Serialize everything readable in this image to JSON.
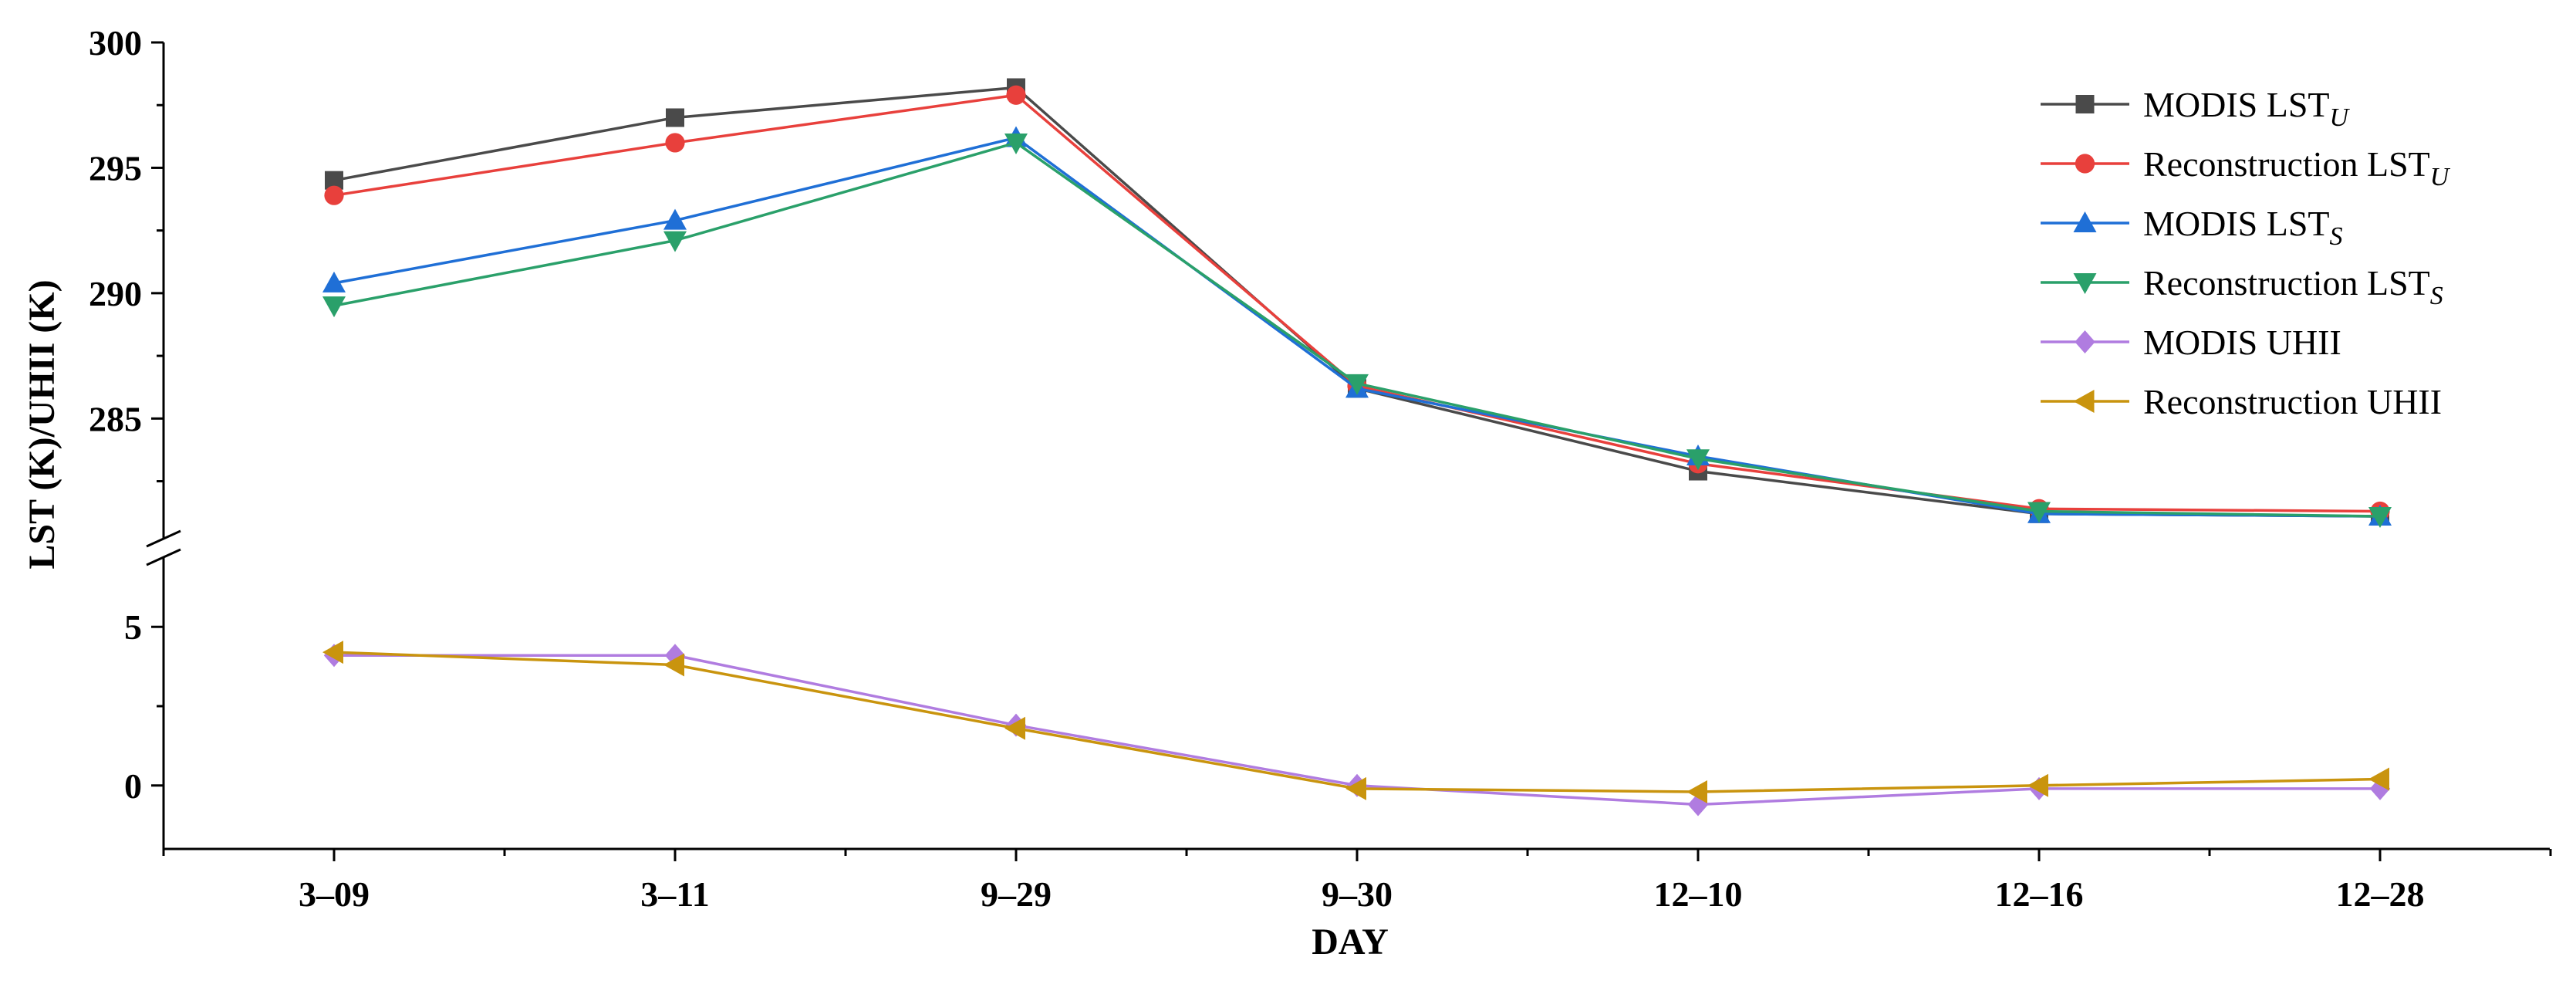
{
  "chart_data": {
    "type": "line",
    "xlabel": "DAY",
    "ylabel": "LST (K)/UHII (K)",
    "categories": [
      "3–09",
      "3–11",
      "9–29",
      "9–30",
      "12–10",
      "12–16",
      "12–28"
    ],
    "upper_axis": {
      "range": [
        280.3,
        300
      ],
      "ticks": [
        285,
        290,
        295,
        300
      ],
      "tick_labels": [
        "285",
        "290",
        "295",
        "300"
      ]
    },
    "lower_axis": {
      "range": [
        -2,
        7
      ],
      "ticks": [
        0,
        5
      ],
      "tick_labels": [
        "0",
        "5"
      ]
    },
    "axis_break": true,
    "legend_position": "top-right",
    "series": [
      {
        "name": "MODIS LST",
        "subscript": "U",
        "panel": "upper",
        "color": "#4a4a4a",
        "marker": "square",
        "values": [
          294.5,
          297.0,
          298.2,
          286.2,
          282.9,
          281.2,
          281.1
        ]
      },
      {
        "name": "Reconstruction LST",
        "subscript": "U",
        "panel": "upper",
        "color": "#e8403c",
        "marker": "circle",
        "values": [
          293.9,
          296.0,
          297.9,
          286.3,
          283.2,
          281.4,
          281.3
        ]
      },
      {
        "name": "MODIS LST",
        "subscript": "S",
        "panel": "upper",
        "color": "#1f6fd6",
        "marker": "triangle-up",
        "values": [
          290.4,
          292.9,
          296.2,
          286.2,
          283.5,
          281.2,
          281.1
        ]
      },
      {
        "name": "Reconstruction LST",
        "subscript": "S",
        "panel": "upper",
        "color": "#2aa06a",
        "marker": "triangle-down",
        "values": [
          289.5,
          292.1,
          296.0,
          286.4,
          283.4,
          281.3,
          281.1
        ]
      },
      {
        "name": "MODIS UHII",
        "subscript": "",
        "panel": "lower",
        "color": "#b07ce0",
        "marker": "diamond",
        "values": [
          4.1,
          4.1,
          1.9,
          0.0,
          -0.6,
          -0.1,
          -0.1
        ]
      },
      {
        "name": "Reconstruction UHII",
        "subscript": "",
        "panel": "lower",
        "color": "#c9940e",
        "marker": "triangle-left",
        "values": [
          4.2,
          3.8,
          1.8,
          -0.1,
          -0.2,
          0.0,
          0.2
        ]
      }
    ]
  }
}
